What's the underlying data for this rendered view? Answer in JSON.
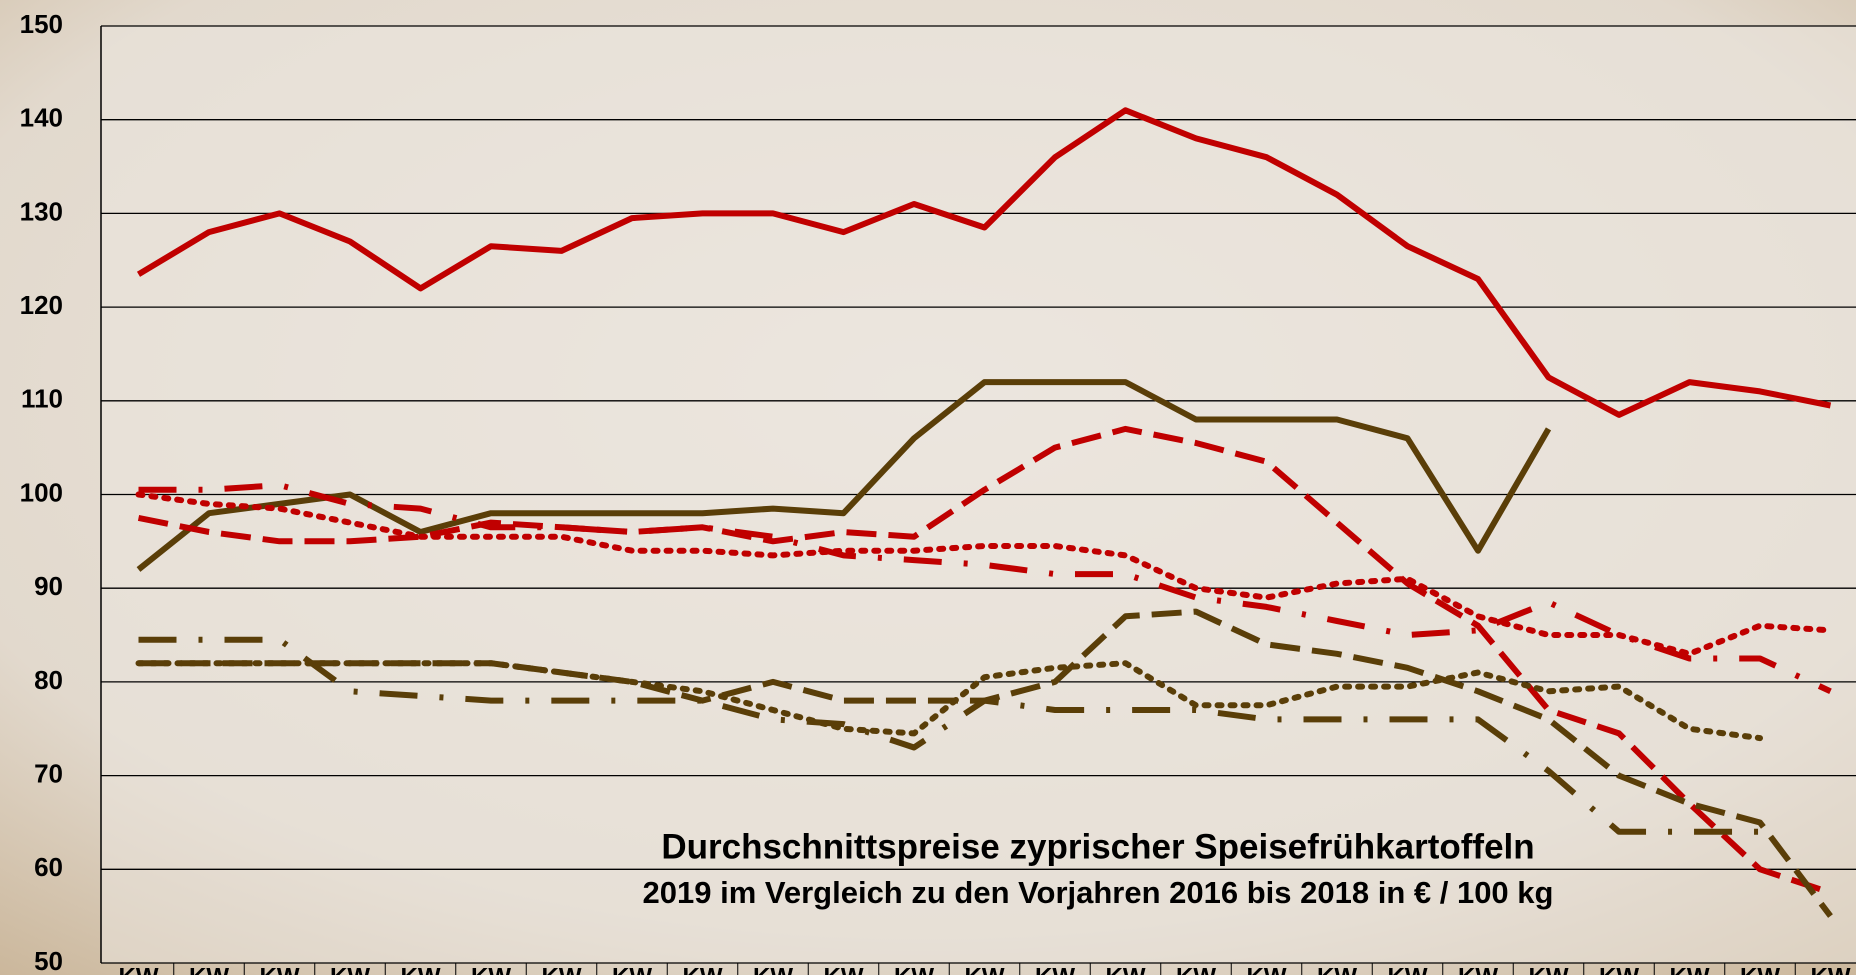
{
  "chart_data": {
    "type": "line",
    "title": "Durchschnittspreise zyprischer Speisefrühkartoffeln",
    "subtitle": "2019 im Vergleich zu den Vorjahren 2016 bis 2018 in € / 100 kg",
    "categories": [
      "KW",
      "KW",
      "KW",
      "KW",
      "KW",
      "KW",
      "KW",
      "KW",
      "KW",
      "KW",
      "KW",
      "KW",
      "KW",
      "KW",
      "KW",
      "KW",
      "KW",
      "KW",
      "KW",
      "KW",
      "KW",
      "KW",
      "KW",
      "KW",
      "KW"
    ],
    "ylim": [
      50,
      150
    ],
    "yticks": [
      50,
      60,
      70,
      80,
      90,
      100,
      110,
      120,
      130,
      140,
      150
    ],
    "grid": true,
    "series": [
      {
        "color": "#c00000",
        "style": "solid",
        "values": [
          123.5,
          128,
          130,
          127,
          122,
          126.5,
          126,
          129.5,
          130,
          130,
          128,
          131,
          128.5,
          136,
          141,
          138,
          136,
          132,
          126.5,
          123,
          112.5,
          108.5,
          112,
          111,
          109.5
        ]
      },
      {
        "color": "#5a3e08",
        "style": "solid",
        "values": [
          92,
          98,
          99,
          100,
          96,
          98,
          98,
          98,
          98,
          98.5,
          98,
          106,
          112,
          112,
          112,
          108,
          108,
          108,
          106,
          94,
          107,
          null,
          null,
          null,
          null
        ]
      },
      {
        "color": "#c00000",
        "style": "dash",
        "values": [
          97.5,
          96,
          95,
          95,
          95.5,
          97,
          96.5,
          96,
          96.5,
          95,
          96,
          95.5,
          100.5,
          105,
          107,
          105.5,
          103.5,
          97,
          90.5,
          86,
          77,
          74.5,
          67,
          60,
          57.5
        ]
      },
      {
        "color": "#c00000",
        "style": "dot",
        "values": [
          100,
          99,
          98.5,
          97,
          95.5,
          95.5,
          95.5,
          94,
          94,
          93.5,
          94,
          94,
          94.5,
          94.5,
          93.5,
          90,
          89,
          90.5,
          91,
          87,
          85,
          85,
          83,
          86,
          85.5
        ]
      },
      {
        "color": "#c00000",
        "style": "longdashdot",
        "values": [
          100.5,
          100.5,
          101,
          99,
          98.5,
          96.5,
          96.5,
          96,
          96.5,
          95.5,
          93.5,
          93,
          92.5,
          91.5,
          91.5,
          89,
          88,
          86.5,
          85,
          85.5,
          88.5,
          85,
          82.5,
          82.5,
          79
        ]
      },
      {
        "color": "#5a3e08",
        "style": "dash",
        "values": [
          82,
          82,
          82,
          82,
          82,
          82,
          81,
          80,
          78,
          80,
          78,
          78,
          78,
          80,
          87,
          87.5,
          84,
          83,
          81.5,
          79,
          76,
          70,
          67,
          65,
          55
        ]
      },
      {
        "color": "#5a3e08",
        "style": "dot",
        "values": [
          82,
          82,
          82,
          82,
          82,
          82,
          81,
          80,
          79,
          77,
          75,
          74.5,
          80.5,
          81.5,
          82,
          77.5,
          77.5,
          79.5,
          79.5,
          81,
          79,
          79.5,
          75,
          74,
          null
        ]
      },
      {
        "color": "#5a3e08",
        "style": "longdashdot",
        "values": [
          84.5,
          84.5,
          84.5,
          79,
          78.5,
          78,
          78,
          78,
          78,
          76,
          75.5,
          73,
          78,
          77,
          77,
          77,
          76,
          76,
          76,
          76,
          70.5,
          64,
          64,
          64,
          null
        ]
      }
    ]
  }
}
